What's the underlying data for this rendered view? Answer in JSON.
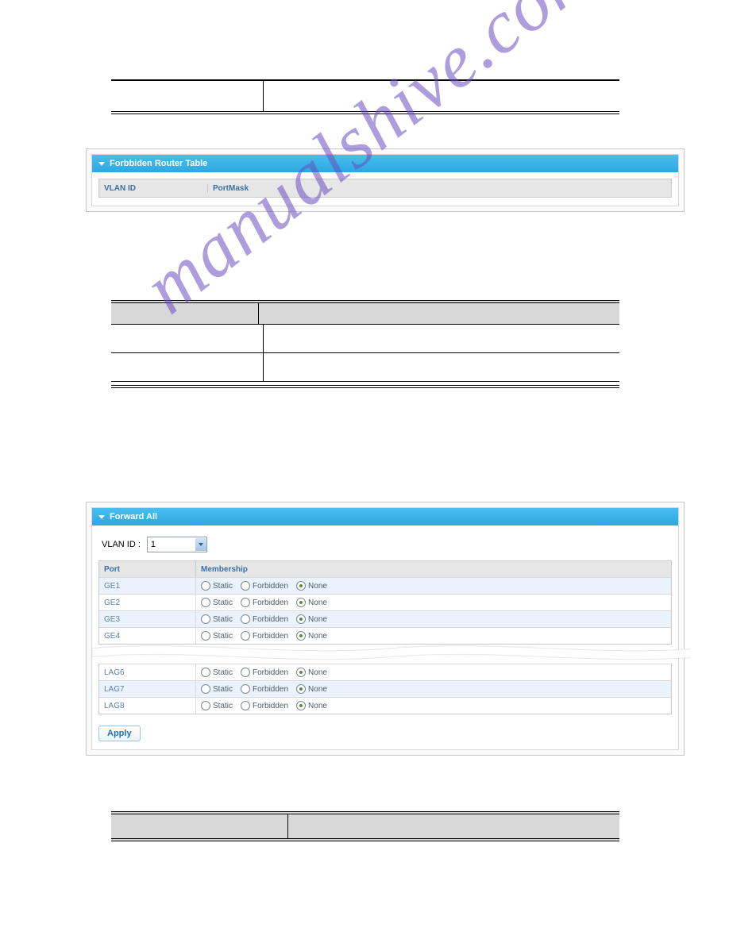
{
  "watermark": "manualshive.com",
  "top_table": {
    "rows": [
      {
        "c1": "",
        "c2": ""
      }
    ]
  },
  "router_panel": {
    "title": "Forbbiden Router Table",
    "columns": [
      "VLAN ID",
      "PortMask"
    ]
  },
  "middle_table": {
    "rows": [
      {
        "c1": "",
        "c2": ""
      },
      {
        "c1": "",
        "c2": ""
      }
    ]
  },
  "forward_panel": {
    "title": "Forward All",
    "vlan_label": "VLAN ID :",
    "vlan_value": "1",
    "columns": [
      "Port",
      "Membership"
    ],
    "options": [
      "Static",
      "Forbidden",
      "None"
    ],
    "selected": 2,
    "rows_top": [
      {
        "port": "GE1",
        "alt": true
      },
      {
        "port": "GE2",
        "alt": false
      },
      {
        "port": "GE3",
        "alt": true
      },
      {
        "port": "GE4",
        "alt": false
      }
    ],
    "rows_bottom": [
      {
        "port": "LAG6",
        "alt": false
      },
      {
        "port": "LAG7",
        "alt": true
      },
      {
        "port": "LAG8",
        "alt": false
      }
    ],
    "apply_label": "Apply"
  },
  "colors": {
    "accent": "#2ca9e0",
    "header_text": "#3a6fa8",
    "row_alt": "#eaf3fb",
    "wm": "rgba(106,77,191,0.55)"
  }
}
